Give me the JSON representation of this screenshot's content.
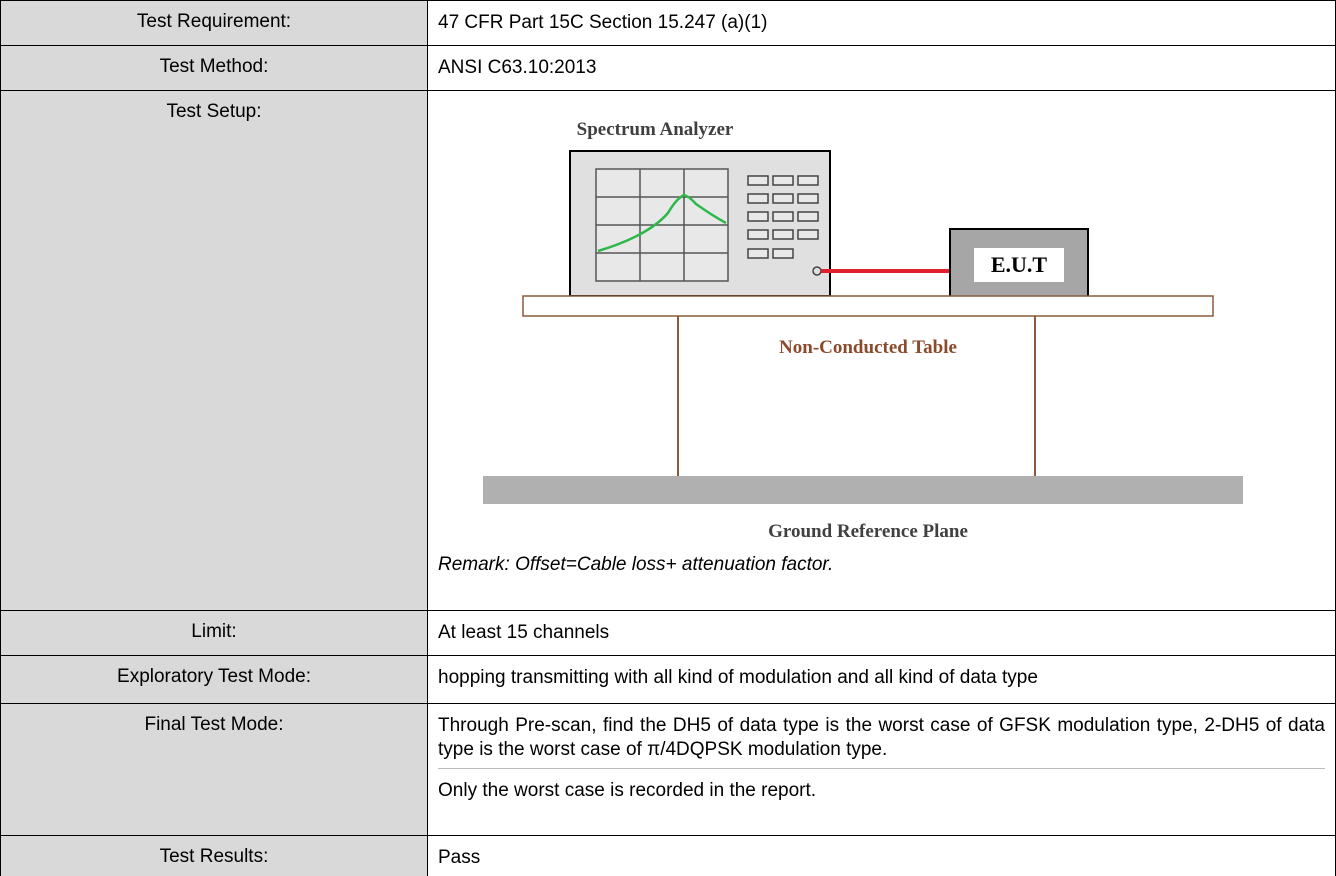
{
  "table": {
    "rows": [
      {
        "label": "Test Requirement:",
        "content": [
          "47 CFR Part 15C Section 15.247 (a)(1)"
        ]
      },
      {
        "label": "Test Method:",
        "content": [
          "ANSI C63.10:2013"
        ]
      },
      {
        "label": "Test Setup:",
        "diagram": {
          "analyzer": "Spectrum Analyzer",
          "eut": "E.U.T",
          "table": "Non-Conducted Table",
          "ground": "Ground Reference Plane"
        },
        "content": [
          "Remark: Offset=Cable loss+ attenuation factor."
        ]
      },
      {
        "label": "Limit:",
        "content": [
          "At least 15 channels"
        ]
      },
      {
        "label": "Exploratory Test Mode:",
        "content": [
          "hopping transmitting with all kind of modulation and all kind of data type"
        ]
      },
      {
        "label": "Final Test Mode:",
        "content": [
          "Through Pre-scan, find the DH5 of data type is the worst case of GFSK modulation type, 2-DH5 of data type is the worst case of π/4DQPSK modulation type.",
          "Only the worst case is recorded in the report."
        ]
      },
      {
        "label": "Test Results:",
        "content": [
          "Pass"
        ]
      }
    ]
  }
}
